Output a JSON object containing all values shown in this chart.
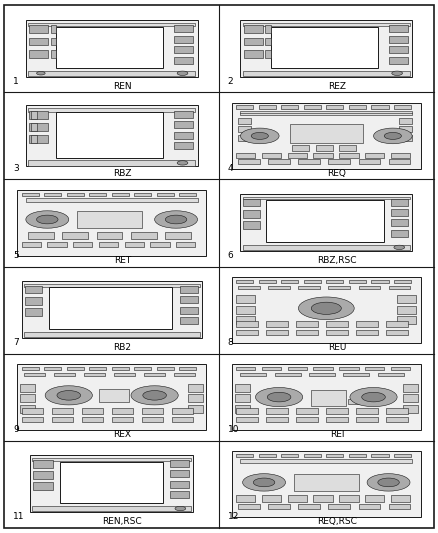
{
  "cells": [
    {
      "num": 1,
      "label": "REN",
      "type": "screen_nav"
    },
    {
      "num": 2,
      "label": "REZ",
      "type": "screen_nav2"
    },
    {
      "num": 3,
      "label": "RBZ",
      "type": "screen_nav3"
    },
    {
      "num": 4,
      "label": "REQ",
      "type": "cd_full"
    },
    {
      "num": 5,
      "label": "RET",
      "type": "cd_knobs"
    },
    {
      "num": 6,
      "label": "RBZ,RSC",
      "type": "screen_nav4"
    },
    {
      "num": 7,
      "label": "RB2",
      "type": "screen_wide"
    },
    {
      "num": 8,
      "label": "REU",
      "type": "cd_center"
    },
    {
      "num": 9,
      "label": "REX",
      "type": "cd_two_knobs"
    },
    {
      "num": 10,
      "label": "REI",
      "type": "cd_two_knobs2"
    },
    {
      "num": 11,
      "label": "REN,RSC",
      "type": "screen_small"
    },
    {
      "num": 12,
      "label": "REQ,RSC",
      "type": "cd_simple"
    }
  ],
  "bg": "#ffffff",
  "lc": "#1a1a1a",
  "fc_body": "#f0f0f0",
  "fc_screen": "#ffffff",
  "fc_btn": "#cccccc",
  "fc_knob": "#888888",
  "lw_main": 0.7,
  "lw_thin": 0.4,
  "num_fs": 6.5,
  "label_fs": 6.5
}
